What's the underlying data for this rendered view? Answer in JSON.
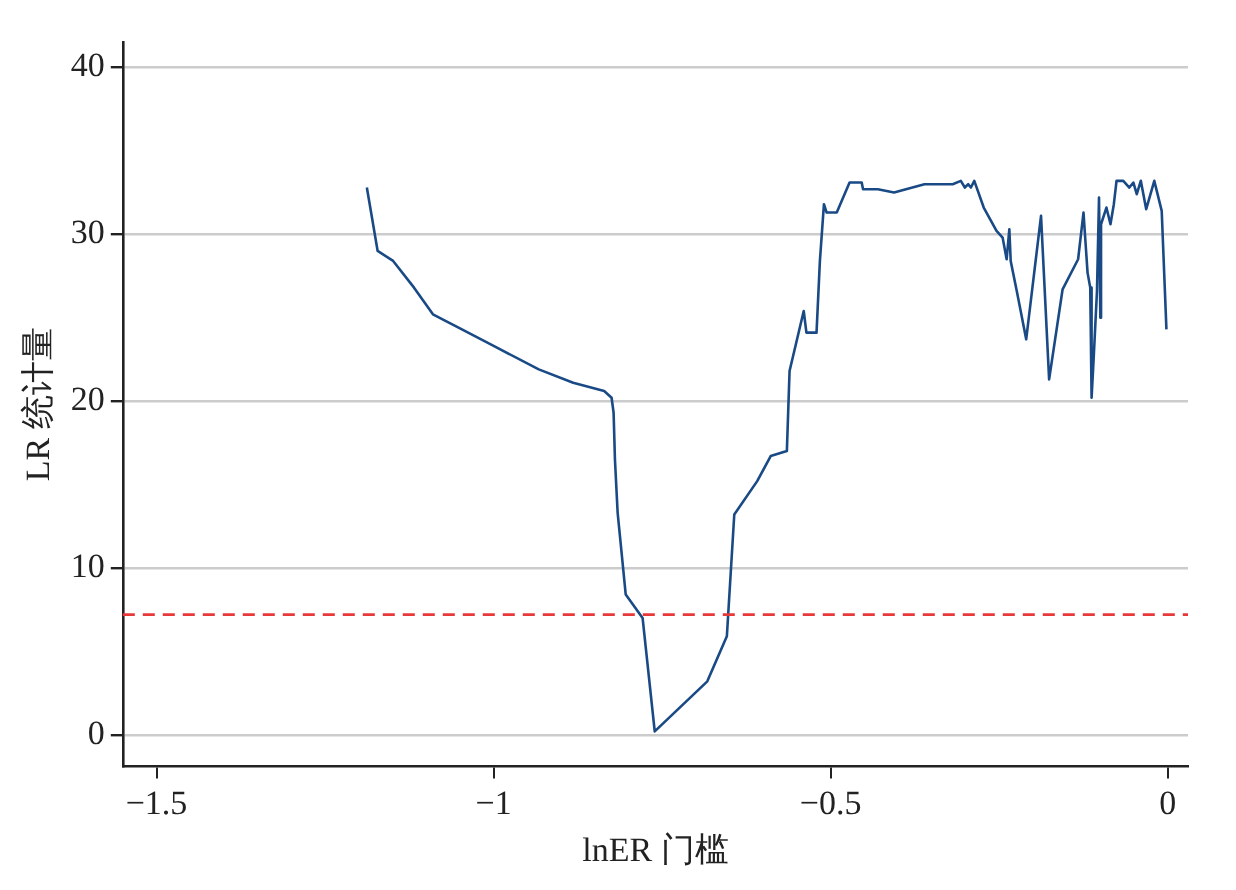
{
  "chart_data": {
    "type": "line",
    "xlabel": "lnER 门槛",
    "ylabel": "LR 统计量",
    "xlim": [
      -1.55,
      0.03
    ],
    "ylim": [
      -1.9,
      41.5
    ],
    "xticks": [
      {
        "value": -1.5,
        "label": "−1.5"
      },
      {
        "value": -1,
        "label": "−1"
      },
      {
        "value": -0.5,
        "label": "−0.5"
      },
      0
    ],
    "yticks": [
      0,
      10,
      20,
      30,
      40
    ],
    "grid": "y",
    "legend": false,
    "marker": "none",
    "line_style": "solid",
    "ref_lines": [
      {
        "axis": "y",
        "value": 7.2,
        "color": "#e8393a",
        "line_style": "dashed"
      }
    ],
    "series": [
      {
        "color": "#1a4a85",
        "x": [
          -1.188,
          -1.172,
          -1.149,
          -1.118,
          -1.09,
          -1.047,
          -0.995,
          -0.933,
          -0.882,
          -0.836,
          -0.825,
          -0.822,
          -0.82,
          -0.816,
          -0.804,
          -0.779,
          -0.761,
          -0.683,
          -0.654,
          -0.643,
          -0.609,
          -0.589,
          -0.565,
          -0.561,
          -0.54,
          -0.536,
          -0.521,
          -0.516,
          -0.51,
          -0.506,
          -0.491,
          -0.472,
          -0.454,
          -0.452,
          -0.43,
          -0.406,
          -0.361,
          -0.319,
          -0.307,
          -0.301,
          -0.296,
          -0.292,
          -0.287,
          -0.273,
          -0.254,
          -0.245,
          -0.239,
          -0.235,
          -0.233,
          -0.224,
          -0.21,
          -0.188,
          -0.176,
          -0.156,
          -0.133,
          -0.125,
          -0.119,
          -0.115,
          -0.113,
          -0.11,
          -0.105,
          -0.102,
          -0.1,
          -0.099,
          -0.091,
          -0.085,
          -0.08,
          -0.076,
          -0.066,
          -0.057,
          -0.051,
          -0.046,
          -0.04,
          -0.032,
          -0.02,
          -0.009,
          -0.002
        ],
        "values": [
          32.8,
          29.0,
          28.4,
          26.8,
          25.2,
          24.3,
          23.2,
          21.9,
          21.1,
          20.6,
          20.2,
          19.3,
          16.5,
          13.3,
          8.4,
          7.0,
          0.2,
          3.2,
          5.9,
          13.2,
          15.2,
          16.7,
          17.0,
          21.8,
          25.4,
          24.1,
          24.1,
          28.4,
          31.8,
          31.3,
          31.3,
          33.1,
          33.1,
          32.7,
          32.7,
          32.5,
          33.0,
          33.0,
          33.2,
          32.8,
          33.0,
          32.8,
          33.2,
          31.6,
          30.2,
          29.8,
          28.5,
          30.3,
          28.4,
          26.6,
          23.7,
          31.1,
          21.3,
          26.7,
          28.5,
          31.3,
          27.7,
          26.8,
          20.2,
          22.5,
          26.6,
          32.2,
          25.0,
          30.6,
          31.6,
          30.6,
          31.8,
          33.2,
          33.2,
          32.8,
          33.1,
          32.4,
          33.2,
          31.5,
          33.2,
          31.4,
          24.3
        ]
      }
    ]
  }
}
